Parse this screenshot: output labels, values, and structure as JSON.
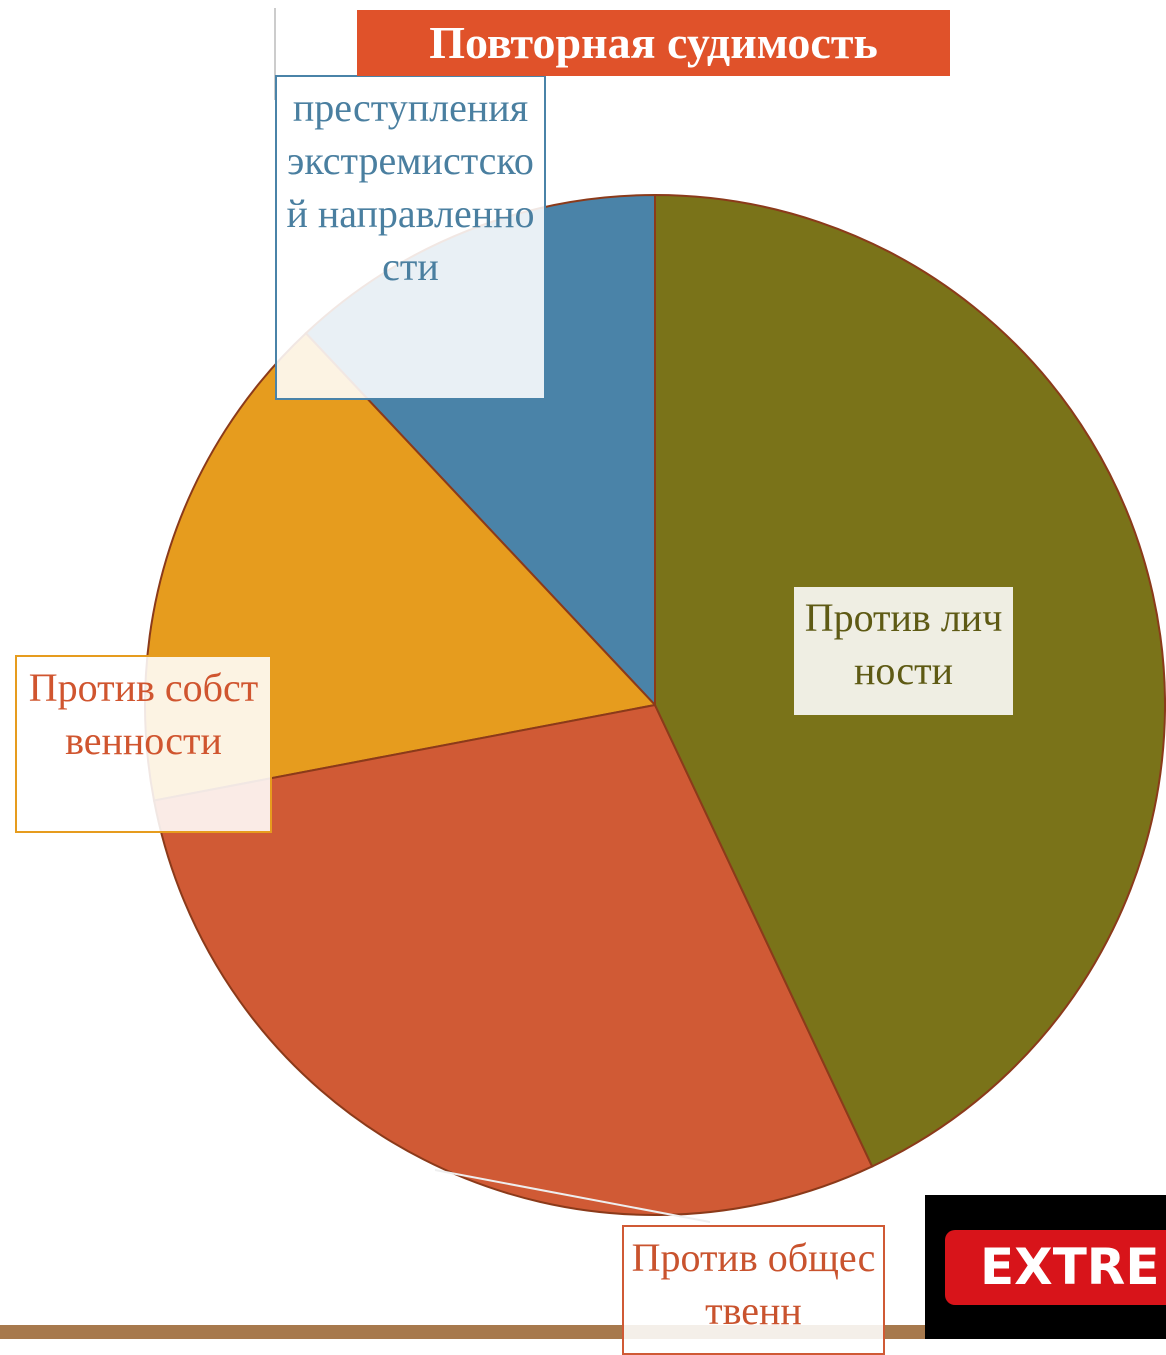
{
  "chart_data": {
    "type": "pie",
    "title": "Повторная судимость",
    "categories": [
      "Против личности",
      "Против общественн",
      "Против собственности",
      "преступления экстремистской направленности"
    ],
    "values": [
      43,
      29,
      16,
      12
    ],
    "colors": [
      "#7a7319",
      "#d05a35",
      "#e69c1e",
      "#4a83a8"
    ],
    "label_colors": [
      "#5e5a14",
      "#c9532e",
      "#d0552f",
      "#4a7fa0"
    ]
  },
  "badge_text": "EXTRE"
}
